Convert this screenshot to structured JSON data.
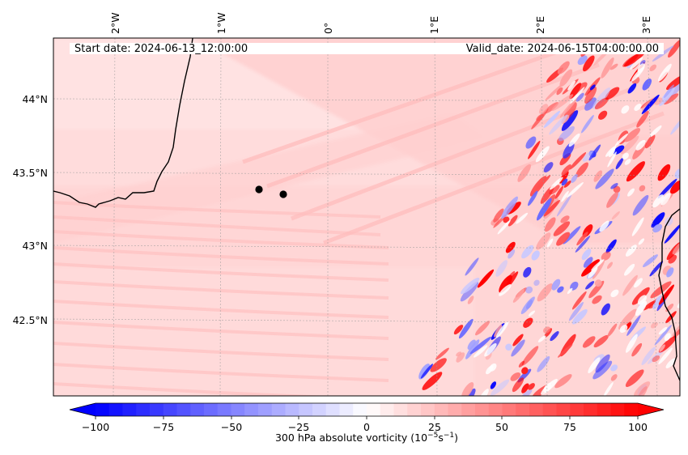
{
  "header": {
    "start_date": "Start date: 2024-06-13_12:00:00",
    "valid_date": "Valid_date: 2024-06-15T04:00:00.00"
  },
  "axes": {
    "lon_ticks": [
      "2°W",
      "1°W",
      "0°",
      "1°E",
      "2°E",
      "3°E"
    ],
    "lat_ticks": [
      "44°N",
      "43.5°N",
      "43°N",
      "42.5°N"
    ]
  },
  "colorbar": {
    "label_prefix": "300 hPa absolute vorticity (10",
    "label_exp1": "−5",
    "label_mid": "s",
    "label_exp2": "−1",
    "label_suffix": ")",
    "ticks": [
      "−100",
      "−75",
      "−50",
      "−25",
      "0",
      "25",
      "50",
      "75",
      "100"
    ],
    "min": -100,
    "max": 100,
    "colormap": "bwr",
    "low_color": "#0000ff",
    "mid_color": "#ffffff",
    "high_color": "#ff0000"
  },
  "map": {
    "background_tint": "#ffd8d8",
    "coastline_color": "#000000",
    "marker_color": "#000000",
    "gridlines": "dotted gray"
  }
}
